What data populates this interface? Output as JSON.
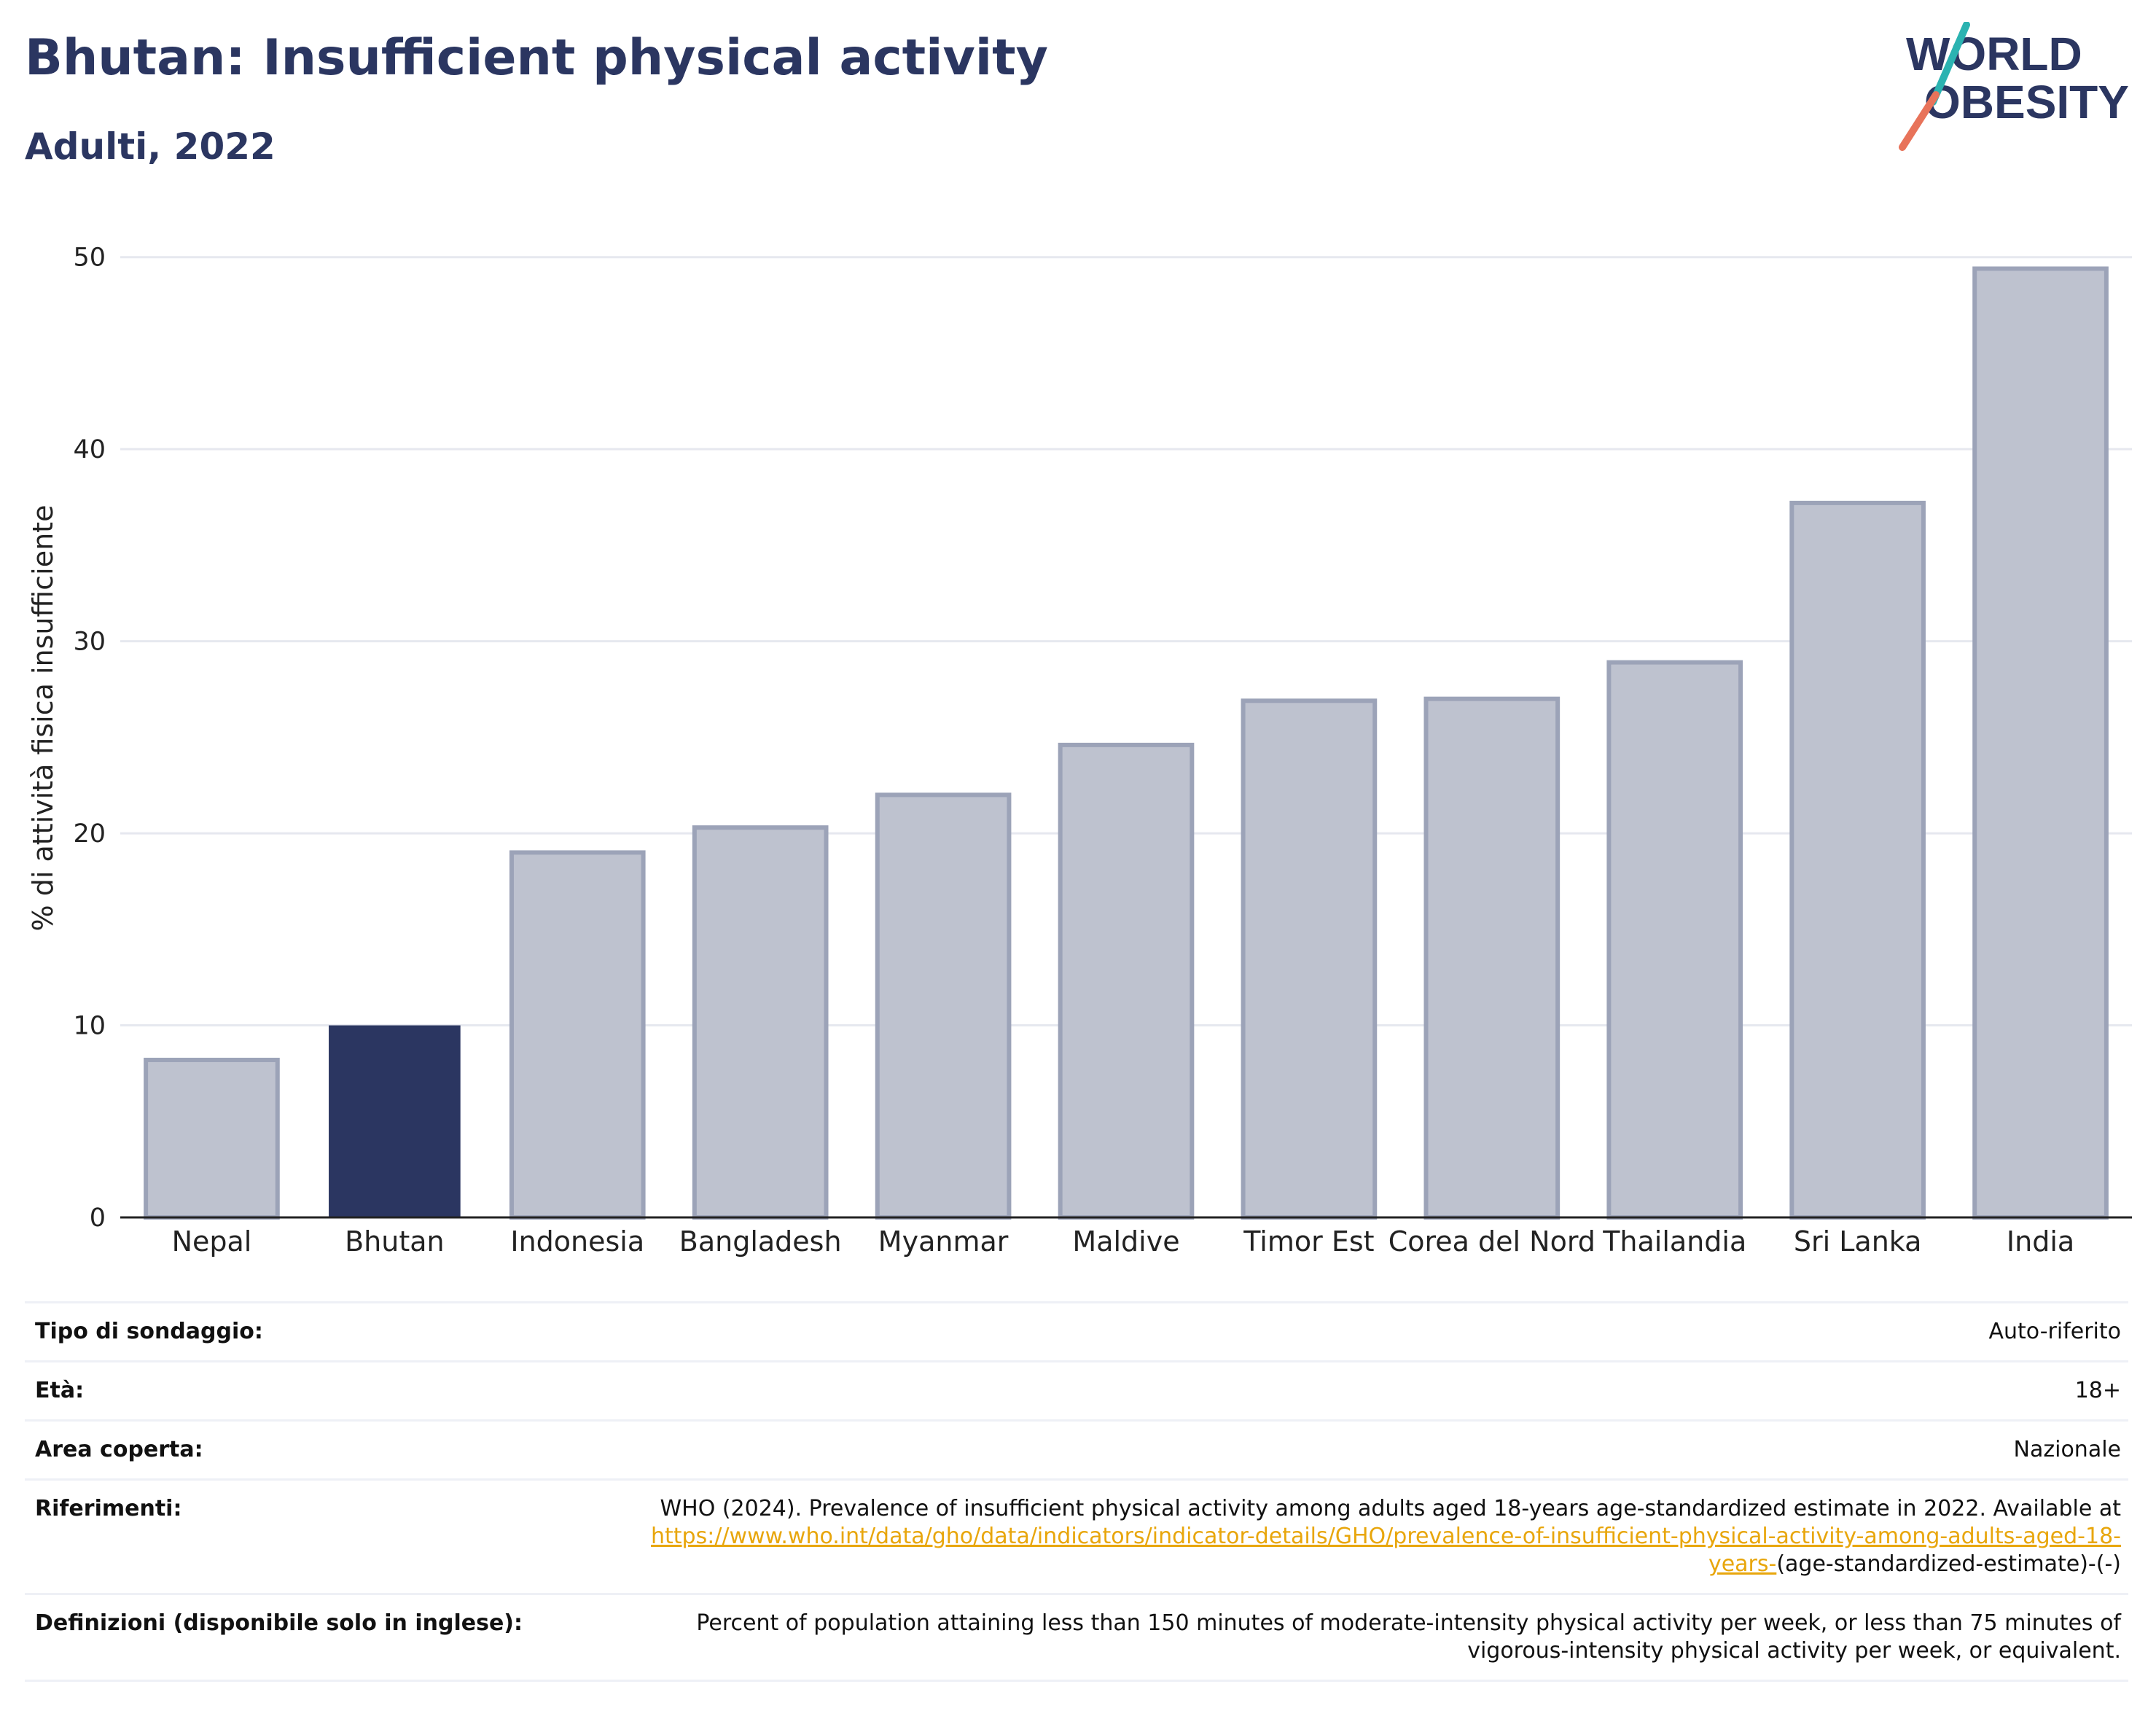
{
  "header": {
    "title": "Bhutan: Insufficient physical activity",
    "subtitle": "Adulti, 2022"
  },
  "logo": {
    "line1": "WORLD",
    "line2": "OBESITY",
    "colors": {
      "text": "#2b3661",
      "slash_teal": "#2bb3b1",
      "slash_coral": "#e8735a"
    }
  },
  "chart_data": {
    "type": "bar",
    "title": "Bhutan: Insufficient physical activity",
    "subtitle": "Adulti, 2022",
    "ylabel": "% di attività fisica insufficiente",
    "xlabel": "",
    "ylim": [
      0,
      52
    ],
    "yticks": [
      0,
      10,
      20,
      30,
      40,
      50
    ],
    "grid": true,
    "categories": [
      "Nepal",
      "Bhutan",
      "Indonesia",
      "Bangladesh",
      "Myanmar",
      "Maldive",
      "Timor Est",
      "Corea del Nord",
      "Thailandia",
      "Sri Lanka",
      "India"
    ],
    "values": [
      8.2,
      10.0,
      19.0,
      20.3,
      22.0,
      24.6,
      26.9,
      27.0,
      28.9,
      37.2,
      49.4
    ],
    "highlight": "Bhutan",
    "colors": {
      "highlight": "#2b3661",
      "other_fill": "#bec2cf",
      "other_stroke": "#9ca3b8",
      "grid": "#e6e8ef",
      "axis": "#222222"
    }
  },
  "info": {
    "rows": [
      {
        "label": "Tipo di sondaggio:",
        "value": "Auto-riferito"
      },
      {
        "label": "Età:",
        "value": "18+"
      },
      {
        "label": "Area coperta:",
        "value": "Nazionale"
      }
    ],
    "references": {
      "label": "Riferimenti:",
      "text": "WHO (2024). Prevalence of insufficient physical activity among adults aged 18-years age-standardized estimate in 2022. Available at",
      "link": "https://www.who.int/data/gho/data/indicators/indicator-details/GHO/prevalence-of-insufficient-physical-activity-among-adults-aged-18-years-",
      "suffix": "(age-standardized-estimate)-(-)"
    },
    "definitions": {
      "label": "Definizioni (disponibile solo in inglese):",
      "text": "Percent of population attaining less than 150 minutes of moderate-intensity physical activity per week, or less than 75 minutes of vigorous-intensity physical activity per week, or equivalent."
    }
  }
}
